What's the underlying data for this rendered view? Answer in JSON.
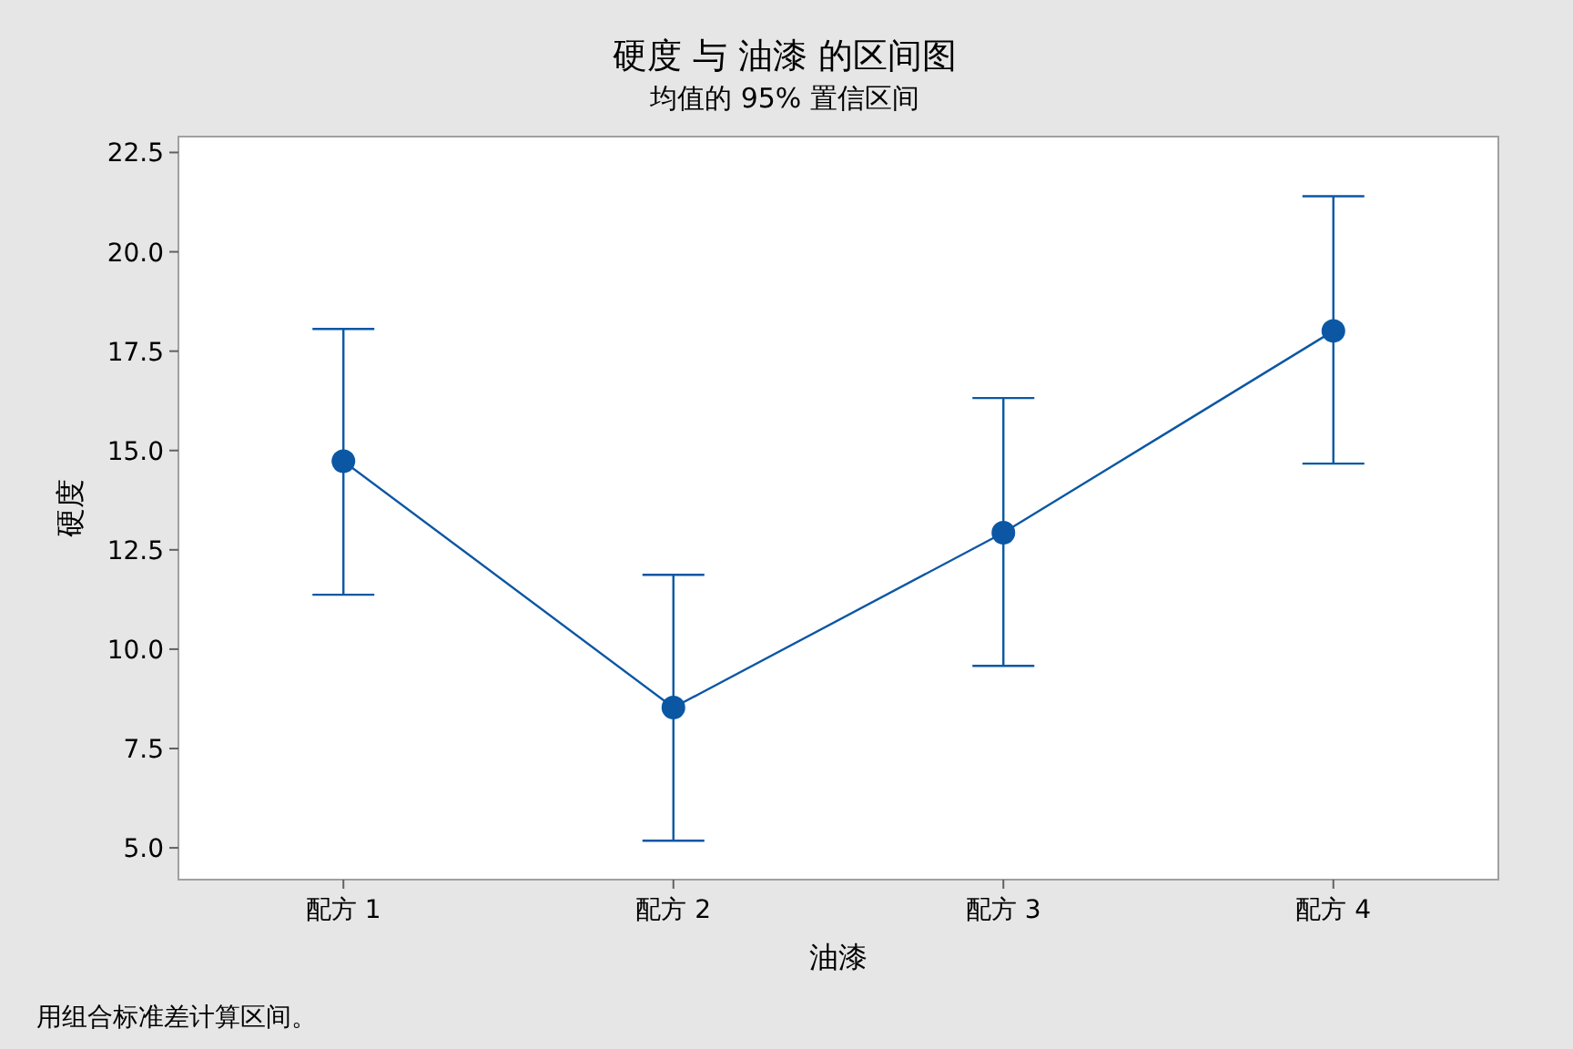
{
  "chart_data": {
    "type": "line",
    "title": "硬度 与 油漆 的区间图",
    "subtitle": "均值的 95% 置信区间",
    "xlabel": "油漆",
    "ylabel": "硬度",
    "categories": [
      "配方 1",
      "配方 2",
      "配方 3",
      "配方 4"
    ],
    "series": [
      {
        "color": "#0b57a4",
        "values": [
          14.73,
          8.53,
          12.93,
          18.01
        ],
        "errors": [
          [
            11.37,
            18.06
          ],
          [
            5.18,
            11.87
          ],
          [
            9.58,
            16.32
          ],
          [
            14.67,
            21.4
          ]
        ]
      }
    ],
    "ylim": [
      4.2,
      22.9
    ],
    "yticks": [
      {
        "value": 5,
        "label": "5.0"
      },
      {
        "value": 7.5,
        "label": "7.5"
      },
      {
        "value": 10,
        "label": "10.0"
      },
      {
        "value": 12.5,
        "label": "12.5"
      },
      {
        "value": 15,
        "label": "15.0"
      },
      {
        "value": 17.5,
        "label": "17.5"
      },
      {
        "value": 20,
        "label": "20.0"
      },
      {
        "value": 22.5,
        "label": "22.5"
      }
    ],
    "marker": "circle",
    "line_style": "solid",
    "grid": false,
    "annotations": [
      "用组合标准差计算区间。"
    ]
  }
}
